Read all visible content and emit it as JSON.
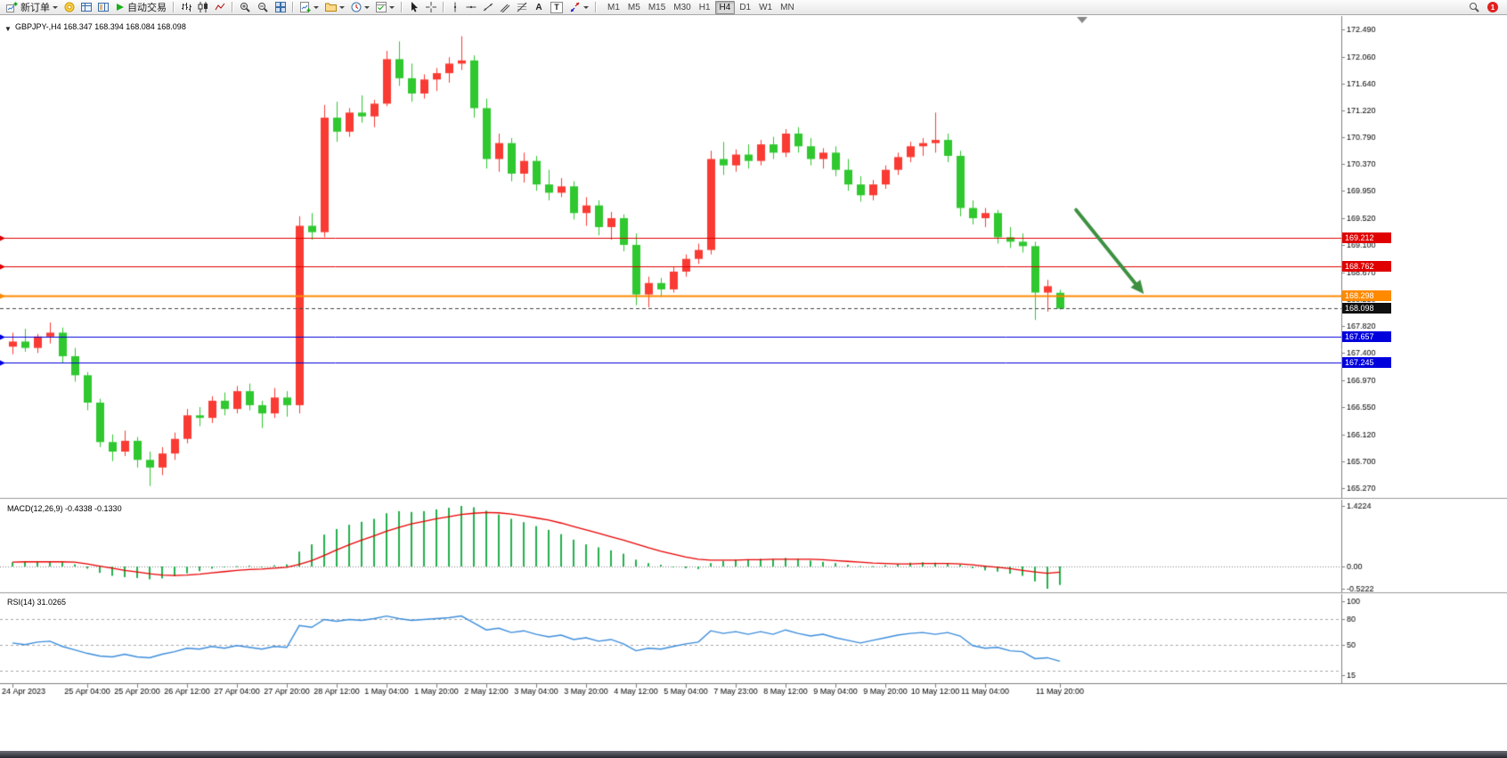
{
  "toolbar": {
    "new_order_label": "新订单",
    "auto_trading_label": "自动交易",
    "text_tool_label": "A",
    "label_tool_label": "T",
    "timeframes": [
      "M1",
      "M5",
      "M15",
      "M30",
      "H1",
      "H4",
      "D1",
      "W1",
      "MN"
    ],
    "active_timeframe": "H4",
    "notification_count": "1",
    "collapse_glyph": "▼"
  },
  "chart": {
    "title": "GBPJPY-,H4 168.347 168.394 168.084 168.098"
  },
  "chart_data": {
    "type": "candlestick",
    "symbol": "GBPJPY-",
    "timeframe": "H4",
    "ohlc_display": {
      "open": "168.347",
      "high": "168.394",
      "low": "168.084",
      "close": "168.098"
    },
    "colors": {
      "bull": "#f93b34",
      "bear": "#2fc82f",
      "arrow": "#3e9041",
      "macd_hist": "#22b14c",
      "macd_signal": "#e80000",
      "rsi_line": "#3c8ddc"
    },
    "ylim": [
      165.15,
      172.6
    ],
    "price_axis_labels": [
      "172.490",
      "172.060",
      "171.640",
      "171.220",
      "170.790",
      "170.370",
      "169.950",
      "169.520",
      "169.100",
      "168.670",
      "168.250",
      "167.820",
      "167.400",
      "166.970",
      "166.550",
      "166.120",
      "165.700",
      "165.270"
    ],
    "levels": [
      {
        "price": 169.212,
        "label": "169.212",
        "color": "#e00000",
        "width": 1
      },
      {
        "price": 168.762,
        "label": "168.762",
        "color": "#e00000",
        "width": 1
      },
      {
        "price": 168.298,
        "label": "168.298",
        "color": "#ff8a00",
        "width": 2
      },
      {
        "price": 167.657,
        "label": "167.657",
        "color": "#0000dd",
        "width": 1
      },
      {
        "price": 167.245,
        "label": "167.245",
        "color": "#0000dd",
        "width": 1
      }
    ],
    "current_price": {
      "value": 168.098,
      "label": "168.098"
    },
    "candles": [
      [
        167.5,
        167.72,
        167.38,
        167.58
      ],
      [
        167.58,
        167.78,
        167.42,
        167.48
      ],
      [
        167.48,
        167.7,
        167.4,
        167.66
      ],
      [
        167.66,
        167.88,
        167.55,
        167.72
      ],
      [
        167.72,
        167.8,
        167.25,
        167.35
      ],
      [
        167.35,
        167.48,
        166.95,
        167.05
      ],
      [
        167.05,
        167.1,
        166.5,
        166.62
      ],
      [
        166.62,
        166.68,
        165.92,
        166.0
      ],
      [
        166.0,
        166.12,
        165.7,
        165.85
      ],
      [
        165.85,
        166.18,
        165.78,
        166.02
      ],
      [
        166.02,
        166.08,
        165.6,
        165.72
      ],
      [
        165.72,
        165.85,
        165.31,
        165.6
      ],
      [
        165.6,
        165.92,
        165.48,
        165.82
      ],
      [
        165.82,
        166.15,
        165.72,
        166.05
      ],
      [
        166.05,
        166.52,
        165.98,
        166.42
      ],
      [
        166.42,
        166.55,
        166.25,
        166.38
      ],
      [
        166.38,
        166.72,
        166.3,
        166.65
      ],
      [
        166.65,
        166.78,
        166.42,
        166.52
      ],
      [
        166.52,
        166.88,
        166.45,
        166.8
      ],
      [
        166.8,
        166.92,
        166.5,
        166.58
      ],
      [
        166.58,
        166.65,
        166.22,
        166.45
      ],
      [
        166.45,
        166.85,
        166.38,
        166.7
      ],
      [
        166.7,
        166.8,
        166.4,
        166.58
      ],
      [
        166.58,
        169.55,
        166.45,
        169.4
      ],
      [
        169.4,
        169.6,
        169.18,
        169.3
      ],
      [
        169.3,
        171.3,
        169.22,
        171.1
      ],
      [
        171.1,
        171.35,
        170.72,
        170.88
      ],
      [
        170.88,
        171.25,
        170.8,
        171.18
      ],
      [
        171.18,
        171.45,
        171.02,
        171.12
      ],
      [
        171.12,
        171.38,
        170.95,
        171.32
      ],
      [
        171.32,
        172.15,
        171.28,
        172.02
      ],
      [
        172.02,
        172.3,
        171.6,
        171.72
      ],
      [
        171.72,
        171.95,
        171.35,
        171.48
      ],
      [
        171.48,
        171.78,
        171.4,
        171.7
      ],
      [
        171.7,
        171.88,
        171.52,
        171.8
      ],
      [
        171.8,
        172.05,
        171.65,
        171.95
      ],
      [
        171.95,
        172.38,
        171.85,
        172.0
      ],
      [
        172.0,
        172.08,
        171.1,
        171.25
      ],
      [
        171.25,
        171.4,
        170.3,
        170.45
      ],
      [
        170.45,
        170.85,
        170.25,
        170.7
      ],
      [
        170.7,
        170.78,
        170.1,
        170.22
      ],
      [
        170.22,
        170.55,
        170.08,
        170.42
      ],
      [
        170.42,
        170.5,
        169.95,
        170.05
      ],
      [
        170.05,
        170.28,
        169.8,
        169.92
      ],
      [
        169.92,
        170.15,
        169.85,
        170.02
      ],
      [
        170.02,
        170.1,
        169.5,
        169.6
      ],
      [
        169.6,
        169.85,
        169.4,
        169.72
      ],
      [
        169.72,
        169.8,
        169.25,
        169.38
      ],
      [
        169.38,
        169.62,
        169.18,
        169.52
      ],
      [
        169.52,
        169.58,
        169.0,
        169.1
      ],
      [
        169.1,
        169.28,
        168.15,
        168.32
      ],
      [
        168.32,
        168.6,
        168.12,
        168.5
      ],
      [
        168.5,
        168.58,
        168.28,
        168.4
      ],
      [
        168.4,
        168.75,
        168.35,
        168.68
      ],
      [
        168.68,
        168.95,
        168.6,
        168.88
      ],
      [
        168.88,
        169.12,
        168.8,
        169.02
      ],
      [
        169.02,
        170.58,
        168.95,
        170.45
      ],
      [
        170.45,
        170.72,
        170.2,
        170.35
      ],
      [
        170.35,
        170.6,
        170.25,
        170.52
      ],
      [
        170.52,
        170.68,
        170.3,
        170.42
      ],
      [
        170.42,
        170.75,
        170.35,
        170.68
      ],
      [
        170.68,
        170.8,
        170.45,
        170.55
      ],
      [
        170.55,
        170.92,
        170.48,
        170.85
      ],
      [
        170.85,
        170.95,
        170.55,
        170.65
      ],
      [
        170.65,
        170.78,
        170.35,
        170.45
      ],
      [
        170.45,
        170.62,
        170.3,
        170.55
      ],
      [
        170.55,
        170.65,
        170.18,
        170.28
      ],
      [
        170.28,
        170.45,
        169.95,
        170.05
      ],
      [
        170.05,
        170.18,
        169.78,
        169.88
      ],
      [
        169.88,
        170.12,
        169.8,
        170.05
      ],
      [
        170.05,
        170.35,
        169.98,
        170.28
      ],
      [
        170.28,
        170.55,
        170.2,
        170.48
      ],
      [
        170.48,
        170.72,
        170.4,
        170.65
      ],
      [
        170.65,
        170.78,
        170.5,
        170.7
      ],
      [
        170.7,
        171.18,
        170.55,
        170.75
      ],
      [
        170.75,
        170.85,
        170.4,
        170.5
      ],
      [
        170.5,
        170.58,
        169.55,
        169.68
      ],
      [
        169.68,
        169.8,
        169.42,
        169.52
      ],
      [
        169.52,
        169.68,
        169.38,
        169.6
      ],
      [
        169.6,
        169.65,
        169.12,
        169.22
      ],
      [
        169.22,
        169.38,
        169.05,
        169.15
      ],
      [
        169.15,
        169.28,
        168.98,
        169.08
      ],
      [
        169.08,
        169.15,
        167.92,
        168.35
      ],
      [
        168.35,
        168.55,
        168.05,
        168.45
      ],
      [
        168.347,
        168.394,
        168.084,
        168.098
      ]
    ],
    "date_ticks": [
      [
        0,
        "24 Apr 2023"
      ],
      [
        6,
        "25 Apr 04:00"
      ],
      [
        10,
        "25 Apr 20:00"
      ],
      [
        14,
        "26 Apr 12:00"
      ],
      [
        18,
        "27 Apr 04:00"
      ],
      [
        22,
        "27 Apr 20:00"
      ],
      [
        26,
        "28 Apr 12:00"
      ],
      [
        30,
        "1 May 04:00"
      ],
      [
        34,
        "1 May 20:00"
      ],
      [
        38,
        "2 May 12:00"
      ],
      [
        42,
        "3 May 04:00"
      ],
      [
        46,
        "3 May 20:00"
      ],
      [
        50,
        "4 May 12:00"
      ],
      [
        54,
        "5 May 04:00"
      ],
      [
        58,
        "7 May 23:00"
      ],
      [
        62,
        "8 May 12:00"
      ],
      [
        66,
        "9 May 04:00"
      ],
      [
        70,
        "9 May 20:00"
      ],
      [
        74,
        "10 May 12:00"
      ],
      [
        78,
        "11 May 04:00"
      ],
      [
        84,
        "11 May 20:00"
      ]
    ],
    "macd": {
      "label": "MACD(12,26,9) -0.4338 -0.1330",
      "axis": [
        {
          "v": 1.4224,
          "label": "1.4224"
        },
        {
          "v": 0,
          "label": "0.00"
        },
        {
          "v": -0.5222,
          "label": "-0.5222"
        }
      ],
      "values": [
        0.1,
        0.12,
        0.11,
        0.12,
        0.1,
        0.05,
        -0.05,
        -0.15,
        -0.22,
        -0.25,
        -0.27,
        -0.3,
        -0.28,
        -0.23,
        -0.16,
        -0.11,
        -0.05,
        -0.02,
        0.01,
        0.02,
        0.0,
        0.03,
        0.05,
        0.35,
        0.52,
        0.75,
        0.88,
        0.98,
        1.05,
        1.12,
        1.25,
        1.3,
        1.28,
        1.3,
        1.34,
        1.38,
        1.4224,
        1.39,
        1.31,
        1.22,
        1.12,
        1.04,
        0.95,
        0.86,
        0.76,
        0.63,
        0.52,
        0.45,
        0.38,
        0.3,
        0.16,
        0.08,
        0.04,
        0.0,
        -0.04,
        -0.06,
        0.08,
        0.13,
        0.16,
        0.17,
        0.18,
        0.17,
        0.2,
        0.18,
        0.14,
        0.11,
        0.08,
        0.04,
        0.01,
        0.01,
        0.03,
        0.06,
        0.09,
        0.1,
        0.09,
        0.08,
        0.04,
        -0.04,
        -0.09,
        -0.12,
        -0.17,
        -0.22,
        -0.35,
        -0.5222,
        -0.4338
      ],
      "signal": [
        0.1,
        0.11,
        0.11,
        0.11,
        0.11,
        0.1,
        0.06,
        0.01,
        -0.04,
        -0.09,
        -0.13,
        -0.17,
        -0.2,
        -0.21,
        -0.2,
        -0.18,
        -0.15,
        -0.12,
        -0.09,
        -0.07,
        -0.06,
        -0.04,
        -0.02,
        0.05,
        0.14,
        0.26,
        0.39,
        0.51,
        0.62,
        0.72,
        0.83,
        0.92,
        1.0,
        1.06,
        1.12,
        1.17,
        1.22,
        1.25,
        1.27,
        1.26,
        1.23,
        1.19,
        1.14,
        1.09,
        1.02,
        0.94,
        0.86,
        0.78,
        0.7,
        0.62,
        0.53,
        0.44,
        0.36,
        0.29,
        0.22,
        0.17,
        0.15,
        0.15,
        0.15,
        0.16,
        0.16,
        0.17,
        0.17,
        0.17,
        0.17,
        0.16,
        0.14,
        0.12,
        0.1,
        0.08,
        0.07,
        0.06,
        0.06,
        0.07,
        0.07,
        0.07,
        0.06,
        0.04,
        0.01,
        -0.02,
        -0.05,
        -0.09,
        -0.13,
        -0.16,
        -0.133
      ]
    },
    "rsi": {
      "label": "RSI(14) 31.0265",
      "axis": [
        {
          "v": 100,
          "label": "100"
        },
        {
          "v": 80,
          "label": "80"
        },
        {
          "v": 50,
          "label": "50"
        },
        {
          "v": 15,
          "label": "15"
        }
      ],
      "levels": [
        80,
        50,
        20
      ],
      "values": [
        52,
        50,
        53,
        54,
        48,
        44,
        40,
        37,
        36,
        39,
        36,
        35,
        39,
        42,
        46,
        45,
        48,
        46,
        49,
        47,
        45,
        48,
        47,
        72,
        70,
        79,
        77,
        79,
        78,
        80,
        83,
        80,
        78,
        79,
        80,
        81,
        83,
        75,
        67,
        69,
        64,
        66,
        62,
        59,
        61,
        56,
        58,
        54,
        56,
        51,
        43,
        46,
        45,
        48,
        51,
        53,
        66,
        63,
        65,
        62,
        65,
        62,
        67,
        63,
        60,
        62,
        58,
        55,
        52,
        55,
        58,
        61,
        63,
        64,
        62,
        64,
        60,
        49,
        46,
        47,
        43,
        42,
        34,
        35,
        31.0265
      ]
    },
    "arrow": {
      "from_index": 85.3,
      "from_price": 169.65,
      "to_index": 90.6,
      "to_price": 168.36
    }
  }
}
